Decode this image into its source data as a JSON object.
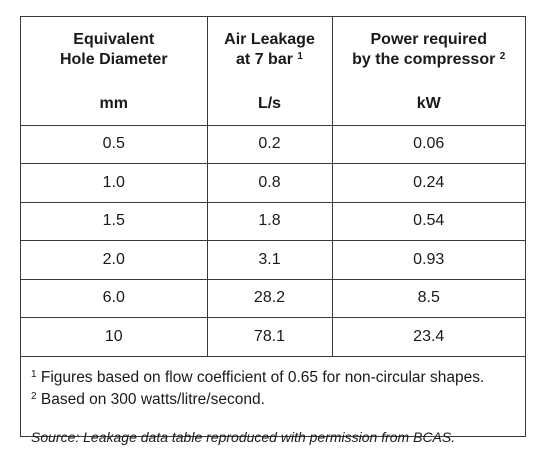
{
  "headers": [
    {
      "line1": "Equivalent",
      "line2": "Hole Diameter",
      "sup": "",
      "unit": "mm"
    },
    {
      "line1": "Air Leakage",
      "line2": "at 7 bar",
      "sup": "1",
      "unit": "L/s"
    },
    {
      "line1": "Power required",
      "line2": "by the compressor",
      "sup": "2",
      "unit": "kW"
    }
  ],
  "rows": [
    [
      "0.5",
      "0.2",
      "0.06"
    ],
    [
      "1.0",
      "0.8",
      "0.24"
    ],
    [
      "1.5",
      "1.8",
      "0.54"
    ],
    [
      "2.0",
      "3.1",
      "0.93"
    ],
    [
      "6.0",
      "28.2",
      "8.5"
    ],
    [
      "10",
      "78.1",
      "23.4"
    ]
  ],
  "footnotes": [
    {
      "mark": "1",
      "text": "Figures based on flow coefficient of 0.65 for non-circular shapes."
    },
    {
      "mark": "2",
      "text": "Based on 300 watts/litre/second."
    }
  ],
  "source": "Source: Leakage data table reproduced with permission from BCAS."
}
